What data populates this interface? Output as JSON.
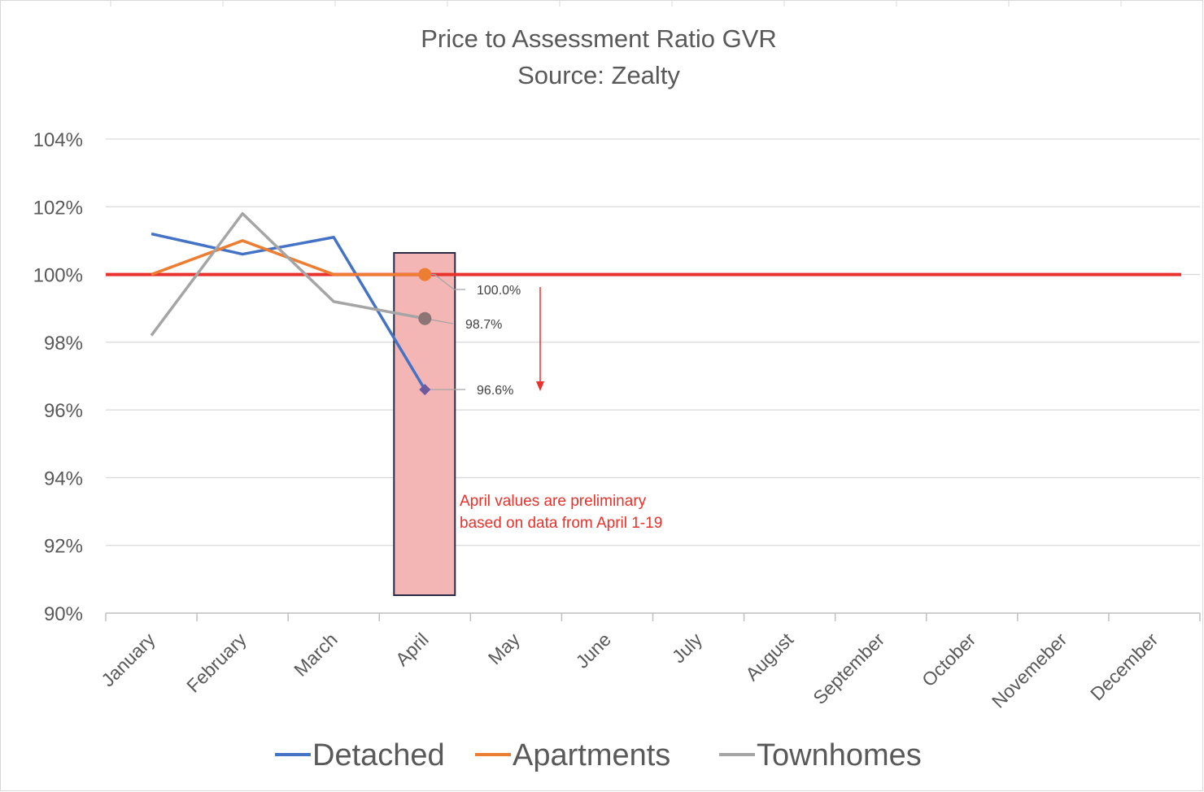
{
  "chart_data": {
    "type": "line",
    "title": "Price to Assessment Ratio GVR",
    "subtitle": "Source: Zealty",
    "xlabel": "",
    "ylabel": "",
    "categories": [
      "January",
      "February",
      "March",
      "April",
      "May",
      "June",
      "July",
      "August",
      "September",
      "October",
      "Novemeber",
      "December"
    ],
    "ylim": [
      90,
      104
    ],
    "yticks": [
      90,
      92,
      94,
      96,
      98,
      100,
      102,
      104
    ],
    "ytick_labels": [
      "90%",
      "92%",
      "94%",
      "96%",
      "98%",
      "100%",
      "102%",
      "104%"
    ],
    "grid": true,
    "legend_position": "bottom",
    "series": [
      {
        "name": "Detached",
        "color": "#4472c4",
        "values": [
          101.2,
          100.6,
          101.1,
          96.6,
          null,
          null,
          null,
          null,
          null,
          null,
          null,
          null
        ]
      },
      {
        "name": "Apartments",
        "color": "#ed7d31",
        "values": [
          100.0,
          101.0,
          100.0,
          100.0,
          null,
          null,
          null,
          null,
          null,
          null,
          null,
          null
        ]
      },
      {
        "name": "Townhomes",
        "color": "#a5a5a5",
        "values": [
          98.2,
          101.8,
          99.2,
          98.7,
          null,
          null,
          null,
          null,
          null,
          null,
          null,
          null
        ]
      }
    ],
    "reference_line": {
      "value": 100,
      "color": "#e8322c"
    },
    "highlight": {
      "category": "April",
      "fill": "#f4b6b4",
      "border": "#2b2b45"
    },
    "data_labels": [
      {
        "series": "Apartments",
        "category": "April",
        "value": 100.0,
        "text": "100.0%",
        "marker_color": "#ed7d31",
        "marker": "circle"
      },
      {
        "series": "Townhomes",
        "category": "April",
        "value": 98.7,
        "text": "98.7%",
        "marker_color": "#8c7575",
        "marker": "circle"
      },
      {
        "series": "Detached",
        "category": "April",
        "value": 96.6,
        "text": "96.6%",
        "marker_color": "#6b5aa0",
        "marker": "diamond"
      }
    ],
    "annotations": [
      {
        "text": "April values are preliminary"
      },
      {
        "text": "based on data from April 1-19"
      }
    ],
    "trend_arrow": {
      "color": "#e8322c",
      "from": 100.0,
      "to": 96.6
    }
  }
}
